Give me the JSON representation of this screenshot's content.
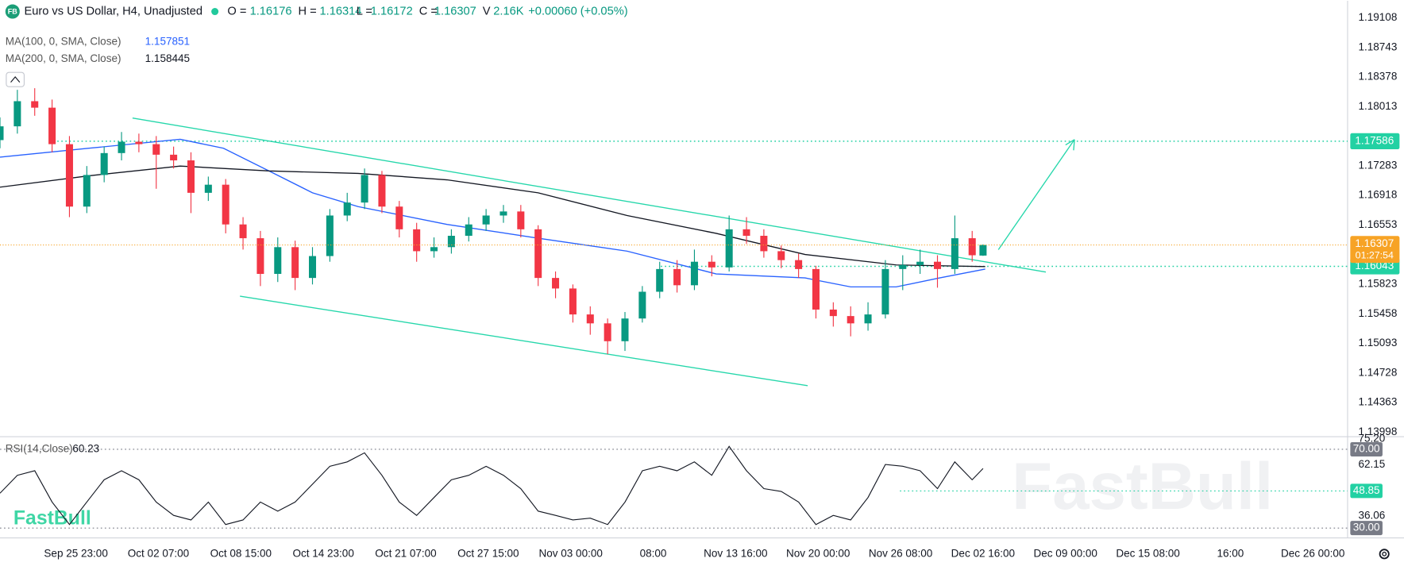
{
  "header": {
    "logo": "FB",
    "symbol": "Euro vs US Dollar, H4, Unadjusted",
    "o_label": "O =",
    "h_label": "H =",
    "l_label": "L =",
    "c_label": "C =",
    "v_label": "V",
    "volume": "2.16K",
    "change": "+0.00060 (+0.05%)"
  },
  "watermark": "FastBull",
  "chart_data": [
    {
      "type": "candlestick",
      "up_color": "#089981",
      "down_color": "#f23645",
      "x": [
        0,
        8,
        16,
        24,
        32,
        40,
        48,
        56,
        64,
        72,
        80,
        88,
        96,
        104,
        112,
        120,
        128,
        136,
        144,
        152,
        160,
        168,
        176,
        184,
        192,
        200,
        208,
        216,
        224,
        232,
        240,
        248,
        256,
        264,
        272,
        280,
        288,
        296,
        304,
        312,
        320,
        328,
        336,
        344,
        352,
        360,
        368,
        376,
        384,
        392,
        400,
        408,
        416,
        424,
        432,
        440,
        448,
        453
      ],
      "open": [
        1.176,
        1.1777,
        1.1808,
        1.18,
        1.1755,
        1.1678,
        1.1717,
        1.1744,
        1.1758,
        1.1755,
        1.1742,
        1.1735,
        1.1695,
        1.1705,
        1.1656,
        1.1639,
        1.1595,
        1.1628,
        1.159,
        1.1617,
        1.1667,
        1.1683,
        1.1717,
        1.1678,
        1.165,
        1.1623,
        1.1628,
        1.1642,
        1.1656,
        1.1667,
        1.1672,
        1.165,
        1.159,
        1.1577,
        1.1545,
        1.1534,
        1.1512,
        1.154,
        1.1573,
        1.1601,
        1.1581,
        1.161,
        1.1603,
        1.165,
        1.1642,
        1.1623,
        1.1612,
        1.1601,
        1.1551,
        1.1543,
        1.1534,
        1.1545,
        1.1601,
        1.1606,
        1.161,
        1.1601,
        1.1639,
        1.16176
      ],
      "high": [
        1.1788,
        1.1822,
        1.1824,
        1.181,
        1.1765,
        1.1728,
        1.1752,
        1.177,
        1.1768,
        1.1765,
        1.1752,
        1.1745,
        1.1715,
        1.1712,
        1.1665,
        1.1648,
        1.164,
        1.1636,
        1.1628,
        1.1675,
        1.1695,
        1.1725,
        1.1722,
        1.1685,
        1.1658,
        1.164,
        1.165,
        1.1665,
        1.1675,
        1.168,
        1.168,
        1.1655,
        1.1598,
        1.1582,
        1.1555,
        1.154,
        1.1548,
        1.158,
        1.161,
        1.1612,
        1.1625,
        1.1618,
        1.1667,
        1.1665,
        1.165,
        1.163,
        1.162,
        1.1605,
        1.156,
        1.1555,
        1.156,
        1.1612,
        1.1618,
        1.1625,
        1.1618,
        1.1667,
        1.1648,
        1.16314
      ],
      "low": [
        1.175,
        1.1768,
        1.179,
        1.1745,
        1.1665,
        1.167,
        1.1708,
        1.1735,
        1.1745,
        1.17,
        1.1725,
        1.167,
        1.1685,
        1.1645,
        1.1625,
        1.158,
        1.1585,
        1.1575,
        1.1582,
        1.161,
        1.166,
        1.1675,
        1.167,
        1.164,
        1.161,
        1.1615,
        1.162,
        1.1635,
        1.1648,
        1.1658,
        1.164,
        1.158,
        1.1565,
        1.1535,
        1.152,
        1.1496,
        1.15,
        1.1535,
        1.1565,
        1.1572,
        1.1575,
        1.1592,
        1.1598,
        1.1632,
        1.1615,
        1.1602,
        1.159,
        1.154,
        1.153,
        1.1518,
        1.1525,
        1.154,
        1.1575,
        1.1595,
        1.1578,
        1.1595,
        1.161,
        1.16172
      ],
      "close": [
        1.1777,
        1.1808,
        1.18,
        1.1755,
        1.1678,
        1.1717,
        1.1744,
        1.1758,
        1.1755,
        1.1742,
        1.1735,
        1.1695,
        1.1705,
        1.1656,
        1.1639,
        1.1595,
        1.1628,
        1.159,
        1.1617,
        1.1667,
        1.1683,
        1.1717,
        1.1678,
        1.165,
        1.1623,
        1.1628,
        1.1642,
        1.1656,
        1.1667,
        1.1672,
        1.165,
        1.159,
        1.1577,
        1.1545,
        1.1534,
        1.1512,
        1.154,
        1.1573,
        1.1601,
        1.1581,
        1.161,
        1.1603,
        1.165,
        1.1642,
        1.1623,
        1.1612,
        1.1601,
        1.1551,
        1.1543,
        1.1534,
        1.1545,
        1.1601,
        1.1606,
        1.161,
        1.1601,
        1.1639,
        1.1618,
        1.16307
      ],
      "xlim": [
        0,
        621
      ],
      "ylim": [
        1.13942,
        1.19318
      ],
      "yticks": [
        1.19108,
        1.18743,
        1.18378,
        1.18013,
        1.17283,
        1.16918,
        1.16553,
        1.15823,
        1.15458,
        1.15093,
        1.14728,
        1.14363,
        1.13998
      ],
      "xticks": [
        {
          "value": 35,
          "label": "Sep 25 23:00"
        },
        {
          "value": 73,
          "label": "Oct 02 07:00"
        },
        {
          "value": 111,
          "label": "Oct 08 15:00"
        },
        {
          "value": 149,
          "label": "Oct 14 23:00"
        },
        {
          "value": 187,
          "label": "Oct 21 07:00"
        },
        {
          "value": 225,
          "label": "Oct 27 15:00"
        },
        {
          "value": 263,
          "label": "Nov 03 00:00"
        },
        {
          "value": 301,
          "label": "08:00"
        },
        {
          "value": 339,
          "label": "Nov 13 16:00"
        },
        {
          "value": 377,
          "label": "Nov 20 00:00"
        },
        {
          "value": 415,
          "label": "Nov 26 08:00"
        },
        {
          "value": 453,
          "label": "Dec 02 16:00"
        },
        {
          "value": 491,
          "label": "Dec 09 00:00"
        },
        {
          "value": 529,
          "label": "Dec 15 08:00"
        },
        {
          "value": 567,
          "label": "16:00"
        },
        {
          "value": 605,
          "label": "Dec 26 00:00"
        }
      ],
      "moving_averages": [
        {
          "name": "MA(100, 0, SMA, Close)",
          "last": 1.157851,
          "color": "#2962ff",
          "x": [
            0,
            41,
            83,
            103,
            124,
            144,
            165,
            206,
            248,
            289,
            330,
            371,
            392,
            413,
            433,
            454
          ],
          "values": [
            1.1739,
            1.175,
            1.1761,
            1.175,
            1.1722,
            1.1695,
            1.1678,
            1.1656,
            1.1639,
            1.1623,
            1.1595,
            1.159,
            1.1579,
            1.1579,
            1.159,
            1.1601
          ]
        },
        {
          "name": "MA(200, 0, SMA, Close)",
          "last": 1.158445,
          "color": "#131722",
          "x": [
            0,
            41,
            83,
            124,
            165,
            206,
            248,
            289,
            330,
            371,
            413,
            454
          ],
          "values": [
            1.1702,
            1.1716,
            1.1728,
            1.1722,
            1.1719,
            1.1711,
            1.1695,
            1.1667,
            1.1645,
            1.1619,
            1.1606,
            1.1604
          ]
        }
      ],
      "levels": [
        {
          "value": 1.17586,
          "color": "#22d1a3"
        },
        {
          "value": 1.16043,
          "color": "#22d1a3"
        }
      ],
      "current_price": {
        "countdown": "01:27:54",
        "color": "#f7a325"
      }
    },
    {
      "type": "line",
      "title": "RSI(14,Close)",
      "color": "#131722",
      "x": [
        0,
        8,
        16,
        24,
        32,
        40,
        48,
        56,
        64,
        72,
        80,
        88,
        96,
        104,
        112,
        120,
        128,
        136,
        144,
        152,
        160,
        168,
        176,
        184,
        192,
        200,
        208,
        216,
        224,
        232,
        240,
        248,
        256,
        264,
        272,
        280,
        288,
        296,
        304,
        312,
        320,
        328,
        336,
        344,
        352,
        360,
        368,
        376,
        384,
        392,
        400,
        408,
        416,
        424,
        432,
        440,
        448,
        453
      ],
      "values": [
        47.7,
        56.8,
        59.1,
        43.2,
        31.8,
        43.2,
        54.5,
        59.1,
        54.5,
        43.2,
        36.4,
        34.1,
        43.2,
        31.8,
        34.1,
        43.2,
        38.6,
        43.2,
        52.3,
        61.4,
        63.6,
        68.2,
        56.8,
        43.2,
        36.4,
        45.5,
        54.5,
        56.8,
        61.4,
        56.8,
        50.0,
        38.6,
        36.4,
        34.1,
        35.0,
        31.8,
        43.2,
        59.1,
        61.4,
        59.1,
        63.6,
        56.8,
        71.5,
        59.1,
        50.0,
        48.6,
        43.2,
        31.8,
        36.4,
        34.1,
        45.5,
        62.3,
        61.4,
        59.1,
        50.0,
        63.6,
        54.5,
        60.23
      ],
      "xlim": [
        0,
        621
      ],
      "ylim": [
        25,
        76.4
      ],
      "yticks": [
        {
          "value": 75.2,
          "label": "75.20"
        },
        62.15,
        36.06
      ],
      "levels": [
        {
          "value": 70,
          "label": "70.00",
          "color": "#787b86"
        },
        {
          "value": 30,
          "label": "30.00",
          "color": "#787b86"
        },
        {
          "value": 48.85,
          "color": "#22d1a3"
        }
      ]
    }
  ]
}
